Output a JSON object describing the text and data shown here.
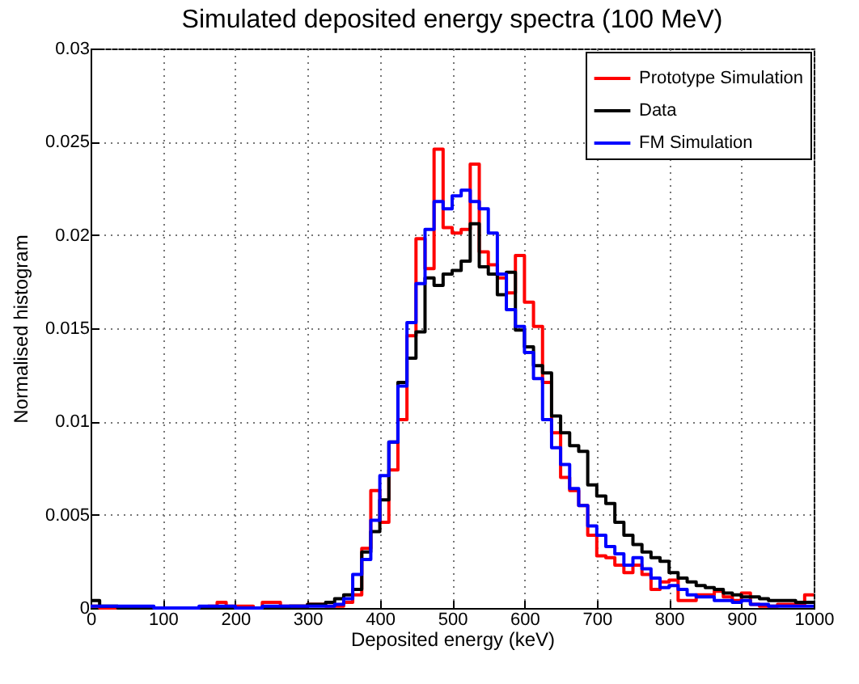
{
  "chart_data": {
    "type": "histogram",
    "title": "Simulated deposited energy spectra (100 MeV)",
    "xlabel": "Deposited energy (keV)",
    "ylabel": "Normalised histogram",
    "bins": [
      0,
      12.5,
      25,
      37.5,
      50,
      62.5,
      75,
      87.5,
      100,
      112.5,
      125,
      137.5,
      150,
      162.5,
      175,
      187.5,
      200,
      212.5,
      225,
      237.5,
      250,
      262.5,
      275,
      287.5,
      300,
      312.5,
      325,
      337.5,
      350,
      362.5,
      375,
      387.5,
      400,
      412.5,
      425,
      437.5,
      450,
      462.5,
      475,
      487.5,
      500,
      512.5,
      525,
      537.5,
      550,
      562.5,
      575,
      587.5,
      600,
      612.5,
      625,
      637.5,
      650,
      662.5,
      675,
      687.5,
      700,
      712.5,
      725,
      737.5,
      750,
      762.5,
      775,
      787.5,
      800,
      812.5,
      825,
      837.5,
      850,
      862.5,
      875,
      887.5,
      900,
      912.5,
      925,
      937.5,
      950,
      962.5,
      975,
      987.5,
      1000
    ],
    "series": [
      {
        "name": "Prototype Simulation",
        "color": "#ff0000",
        "values": [
          0.0001,
          0,
          0,
          0,
          0,
          0,
          0,
          0,
          0,
          0,
          0,
          0,
          0,
          0.0001,
          0.0003,
          0.0001,
          0.0001,
          0.0001,
          0,
          0.0003,
          0.0003,
          0.0001,
          0.0001,
          0.0001,
          0.0002,
          0.0002,
          0.0001,
          0.0001,
          0.0003,
          0.0007,
          0.0032,
          0.0063,
          0.0046,
          0.0074,
          0.0101,
          0.0146,
          0.0198,
          0.0182,
          0.0246,
          0.0204,
          0.0201,
          0.0203,
          0.0238,
          0.0191,
          0.0184,
          0.0177,
          0.0169,
          0.0189,
          0.0164,
          0.0151,
          0.0121,
          0.0094,
          0.007,
          0.0063,
          0.0055,
          0.0039,
          0.0028,
          0.0027,
          0.0023,
          0.0019,
          0.0023,
          0.0018,
          0.001,
          0.0014,
          0.0015,
          0.0004,
          0.0004,
          0.0007,
          0.0007,
          0.0009,
          0.0006,
          0.0004,
          0.0008,
          0.0002,
          0.0001,
          0.0001,
          0.0002,
          0.0002,
          0.0002,
          0.0007
        ]
      },
      {
        "name": "Data",
        "color": "#000000",
        "values": [
          0.0004,
          0.0001,
          0.0001,
          0,
          0,
          0,
          0,
          0,
          0,
          0,
          0,
          0,
          0,
          0,
          0,
          0,
          0,
          0,
          0,
          0,
          0,
          0,
          0.0001,
          0.0001,
          0.0002,
          0.0002,
          0.0003,
          0.0005,
          0.0007,
          0.001,
          0.003,
          0.0041,
          0.0058,
          0.0089,
          0.0121,
          0.0134,
          0.0148,
          0.0177,
          0.0173,
          0.0179,
          0.0181,
          0.0186,
          0.0206,
          0.0183,
          0.0179,
          0.0168,
          0.018,
          0.0149,
          0.014,
          0.013,
          0.0126,
          0.0103,
          0.0094,
          0.0087,
          0.0084,
          0.0066,
          0.006,
          0.0056,
          0.0046,
          0.0039,
          0.0034,
          0.003,
          0.0027,
          0.0025,
          0.0019,
          0.0016,
          0.0014,
          0.0012,
          0.0011,
          0.001,
          0.0008,
          0.0007,
          0.0006,
          0.0006,
          0.0005,
          0.0004,
          0.0004,
          0.0004,
          0.0003,
          0.0003
        ]
      },
      {
        "name": "FM Simulation",
        "color": "#0000ff",
        "values": [
          0.0001,
          0.0001,
          0.0001,
          0.0001,
          0.0001,
          0.0001,
          0.0001,
          0,
          0,
          0,
          0,
          0,
          0.0001,
          0.0001,
          0.0001,
          0.0001,
          0,
          0,
          0,
          0.0001,
          0.0001,
          0.0001,
          0.0001,
          0.0001,
          0.0001,
          0.0001,
          0.0001,
          0.0002,
          0.0005,
          0.0018,
          0.0026,
          0.0047,
          0.0071,
          0.0089,
          0.0119,
          0.0153,
          0.0174,
          0.0203,
          0.0218,
          0.0214,
          0.0221,
          0.0224,
          0.0218,
          0.0214,
          0.0201,
          0.0179,
          0.016,
          0.0151,
          0.0137,
          0.0123,
          0.0101,
          0.0086,
          0.0077,
          0.0064,
          0.0055,
          0.0044,
          0.0039,
          0.0033,
          0.0029,
          0.0023,
          0.0027,
          0.0021,
          0.0016,
          0.0011,
          0.0012,
          0.001,
          0.0007,
          0.0006,
          0.0006,
          0.0004,
          0.0004,
          0.0003,
          0.0004,
          0.0002,
          0.0002,
          0.0001,
          0.0001,
          0.0001,
          0.0001,
          0.0001
        ]
      }
    ],
    "xlim": [
      0,
      1000
    ],
    "xticks": [
      0,
      100,
      200,
      300,
      400,
      500,
      600,
      700,
      800,
      900,
      1000
    ],
    "ylim": [
      0,
      0.03
    ],
    "yticks": [
      0,
      0.005,
      0.01,
      0.015,
      0.02,
      0.025,
      0.03
    ],
    "grid": true,
    "legend": "top right"
  }
}
